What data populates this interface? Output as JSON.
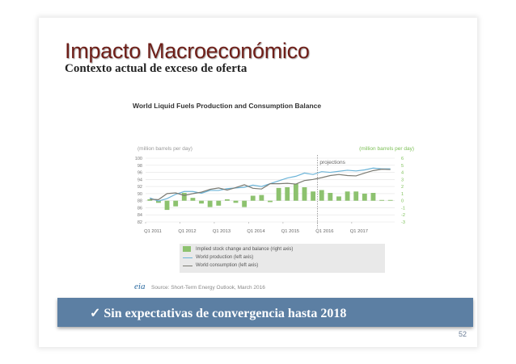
{
  "slide": {
    "title": "Impacto Macroeconómico",
    "subtitle": "Contexto actual de exceso de oferta",
    "banner": "✓ Sin expectativas de convergencia hasta 2018",
    "page_number": "52",
    "source": "Source: Short-Term Energy Outlook, March 2016",
    "logo_text": "eia"
  },
  "chart_data": {
    "type": "bar+line",
    "title": "World Liquid Fuels Production and Consumption Balance",
    "left_axis_label": "(million barrels per day)",
    "right_axis_label": "(million barrels per day)",
    "left_axis": {
      "ylim": [
        82,
        100
      ],
      "ticks": [
        "100",
        "98",
        "96",
        "94",
        "92",
        "90",
        "88",
        "86",
        "84",
        "82"
      ]
    },
    "right_axis": {
      "ylim": [
        -3,
        6
      ],
      "ticks": [
        "6",
        "5",
        "4",
        "3",
        "2",
        "1",
        "0",
        "-1",
        "-2",
        "-3"
      ]
    },
    "x_tick_labels": [
      "Q1 2011",
      "Q1 2012",
      "Q1 2013",
      "Q1 2014",
      "Q1 2015",
      "Q1 2016",
      "Q1 2017"
    ],
    "projection_label": "projections",
    "projection_start_index": 20,
    "legend_position": "bottom",
    "series": [
      {
        "name": "Implied stock change and balance (right axis)",
        "kind": "bar",
        "axis": "right",
        "color": "#8dc26f",
        "values": [
          0.2,
          -0.3,
          -1.3,
          -0.8,
          1.1,
          0.4,
          -0.4,
          -0.9,
          -0.7,
          0.2,
          -0.3,
          -0.9,
          0.7,
          0.8,
          -0.2,
          1.8,
          1.9,
          2.4,
          1.9,
          1.3,
          1.5,
          1.1,
          0.6,
          1.3,
          1.3,
          1.0,
          1.1,
          0.1,
          0.1
        ]
      },
      {
        "name": "World production (left axis)",
        "kind": "line",
        "axis": "left",
        "color": "#6cb4d8",
        "values": [
          88.8,
          87.9,
          88.6,
          89.8,
          90.6,
          90.6,
          90.1,
          90.9,
          90.9,
          91.4,
          91.6,
          91.8,
          92.4,
          92.0,
          92.8,
          93.6,
          94.4,
          94.9,
          95.8,
          95.4,
          96.2,
          96.0,
          96.3,
          96.6,
          96.4,
          96.7,
          97.2,
          97.0,
          97.0
        ]
      },
      {
        "name": "World consumption (left axis)",
        "kind": "line",
        "axis": "left",
        "color": "#7a7a72",
        "values": [
          88.4,
          88.3,
          90.0,
          90.2,
          89.5,
          90.0,
          90.4,
          91.2,
          91.6,
          91.0,
          91.7,
          92.5,
          91.5,
          91.3,
          92.8,
          92.8,
          92.9,
          92.7,
          93.7,
          94.0,
          94.5,
          95.1,
          95.4,
          95.1,
          95.0,
          95.8,
          96.5,
          96.9,
          96.8
        ]
      }
    ]
  }
}
